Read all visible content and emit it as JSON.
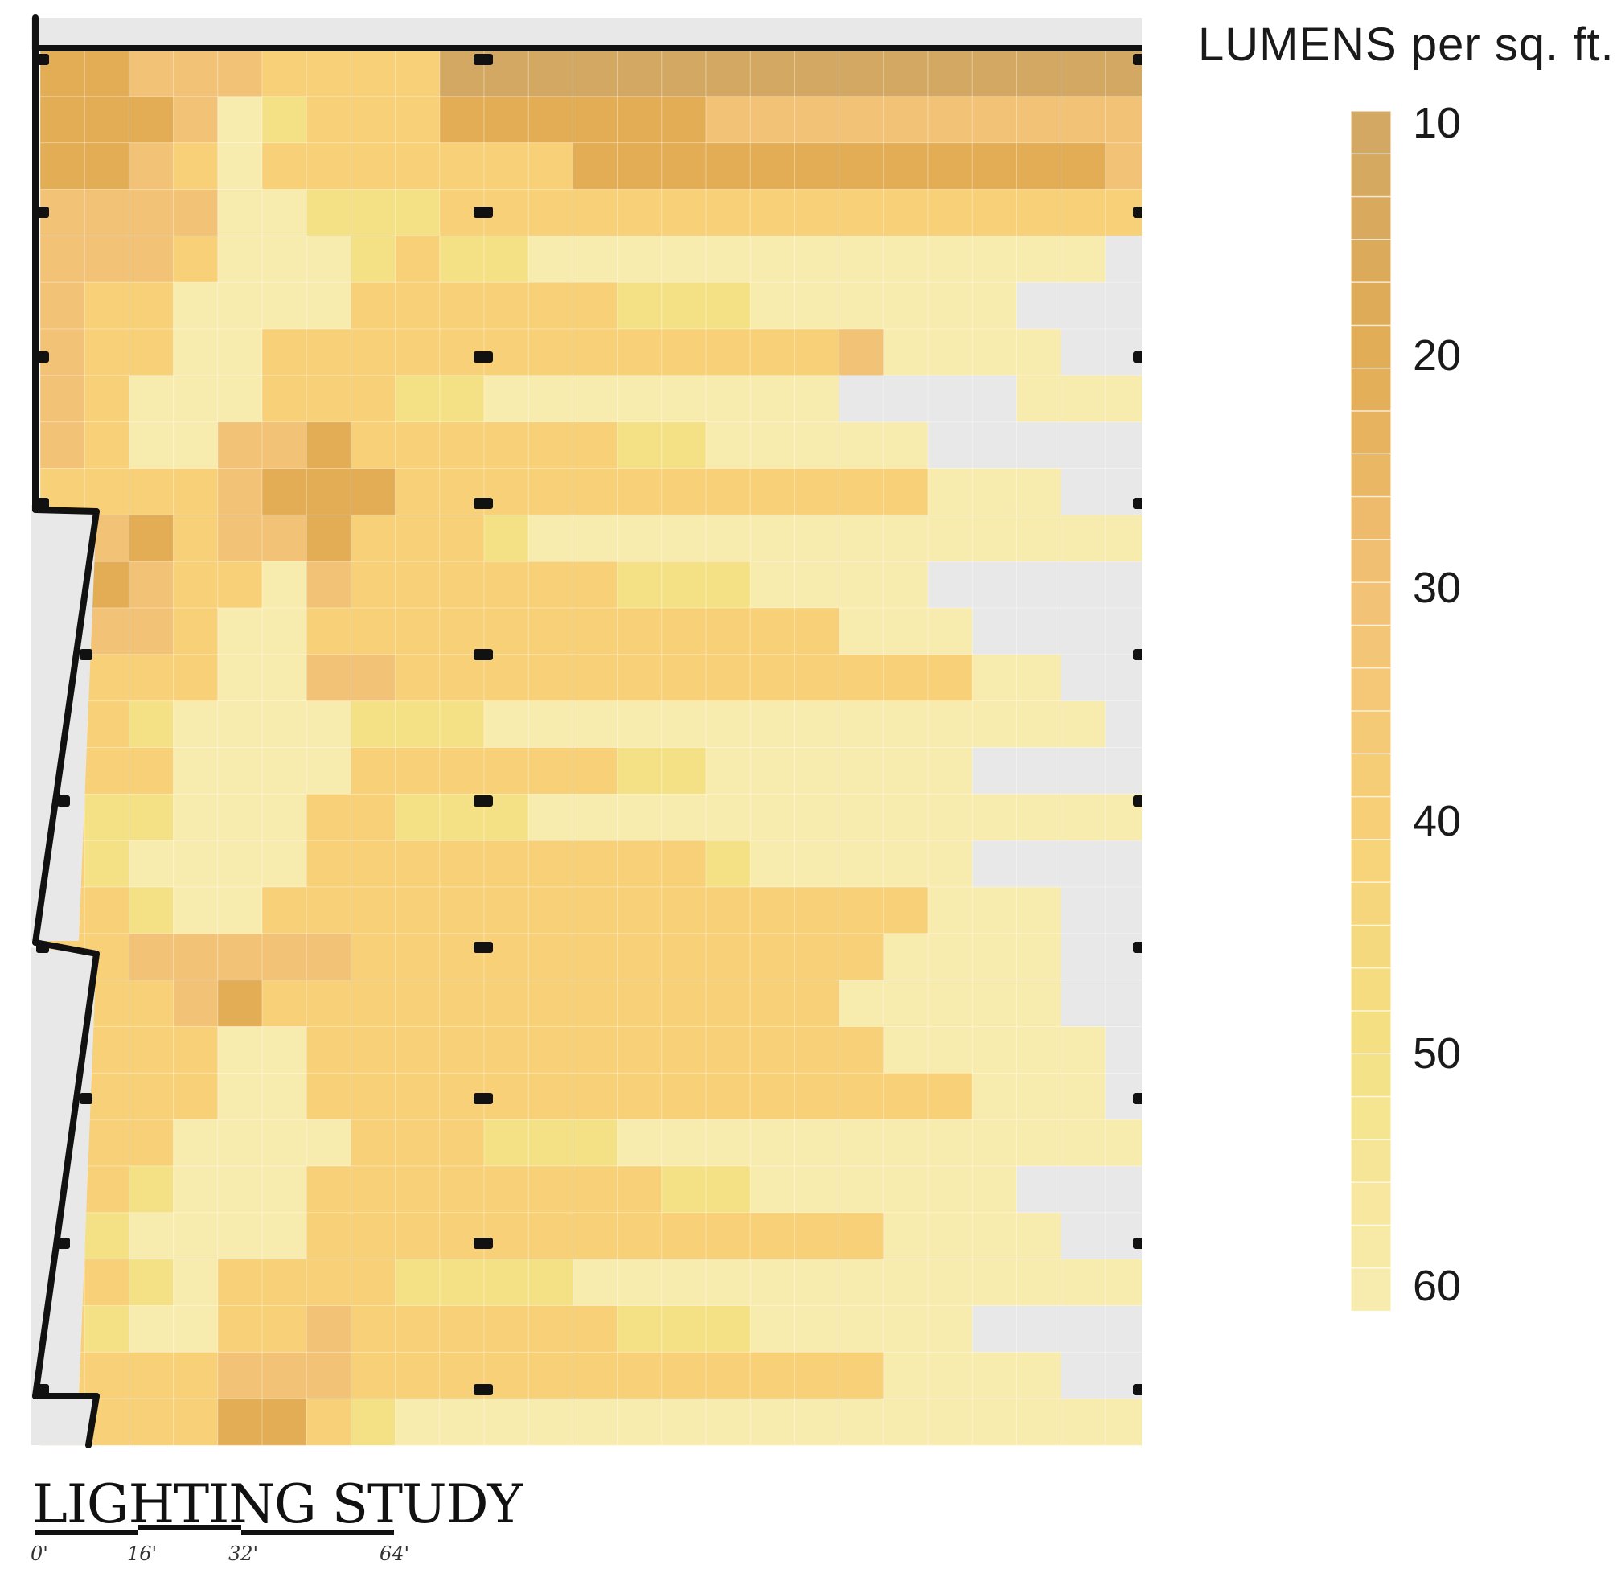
{
  "legend": {
    "title": "LUMENS per sq. ft.",
    "labels": [
      "10",
      "20",
      "30",
      "40",
      "50",
      "60"
    ],
    "min": 10,
    "max": 60
  },
  "colors": {
    "lum10": "#d3a862",
    "lum20": "#e2ad55",
    "lum30": "#f2c276",
    "lum40": "#f7d077",
    "lum50": "#f4e185",
    "lum60": "#f8ebae",
    "wall": "#111111",
    "void": "#e8e8e8"
  },
  "study": {
    "title": "LIGHTING STUDY",
    "scale_ticks": [
      "0'",
      "16'",
      "32'",
      "64'"
    ]
  },
  "heatmap": {
    "rows": [
      "1122233330000000000000000",
      "1112543331111112222222222",
      "1123533333331111111111112",
      "2222554443333333333333333",
      "2223555434455555555555556",
      "2335555333333444555555666",
      "2335533333333333332555566",
      "2355533344555555556666555",
      "2355221333333445555566666",
      "3333211133333333333355566",
      "2213221333455555555555555",
      "2123352333333444555566666",
      "3223553333333333335556666",
      "3333552233333333333335566",
      "3345555444555555555555556",
      "3335555333333445555556666",
      "3445553344455555555555555",
      "3455553333333334555556666",
      "3345533333333333333355566",
      "3322222333333333333555566",
      "3332133333333333335555566",
      "3333553333333333333555556",
      "3333553333333333333335556",
      "3335555333444555555555555",
      "3345553333333344555555666",
      "3455553333333333333555566",
      "3345333344445555555555555",
      "3455332333333444555556666",
      "3333222333333333333555566",
      "3333113455555555555555555"
    ]
  }
}
